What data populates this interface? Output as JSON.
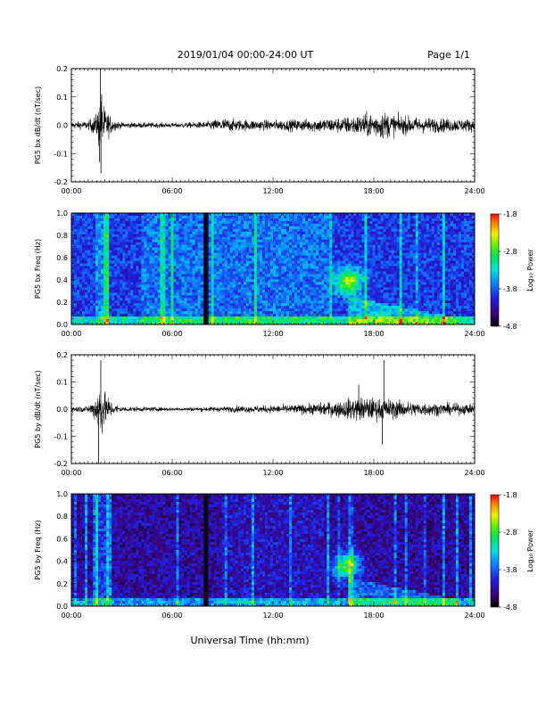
{
  "header": {
    "date_label": "2019/01/04  00:00-24:00 UT",
    "page_label": "Page 1/1"
  },
  "xlabel": "Universal Time (hh:mm)",
  "x_ticks": [
    "00:00",
    "06:00",
    "12:00",
    "18:00",
    "24:00"
  ],
  "colorbar": {
    "label": "Log₁₀ Power",
    "ticks": [
      "-1.8",
      "-2.8",
      "-3.8",
      "-4.8"
    ],
    "range": [
      -4.8,
      -1.8
    ]
  },
  "chart_data": [
    {
      "type": "line",
      "ylabel": "PG5 bx dB/dt (nT/sec)",
      "y_ticks": [
        "0.2",
        "0.1",
        "0.0",
        "-0.1",
        "-0.2"
      ],
      "xlim_hours": [
        0,
        24
      ],
      "ylim": [
        -0.2,
        0.2
      ],
      "envelope_hours": [
        0,
        1,
        1.5,
        1.7,
        2,
        2.5,
        3,
        6,
        8,
        9,
        10,
        12,
        14,
        16,
        17,
        18.5,
        19,
        20,
        22,
        24
      ],
      "envelope_values": [
        0.012,
        0.015,
        0.04,
        0.1,
        0.06,
        0.02,
        0.01,
        0.008,
        0.012,
        0.025,
        0.02,
        0.018,
        0.022,
        0.028,
        0.035,
        0.05,
        0.04,
        0.03,
        0.025,
        0.022
      ],
      "spikes": [
        {
          "t": 1.72,
          "v": 0.2
        },
        {
          "t": 1.76,
          "v": -0.17
        },
        {
          "t": 1.8,
          "v": 0.11
        },
        {
          "t": 1.68,
          "v": -0.13
        }
      ]
    },
    {
      "type": "heatmap",
      "ylabel": "PG5 bx Freq (Hz)",
      "y_ticks": [
        "1.0",
        "0.8",
        "0.6",
        "0.4",
        "0.2",
        "0.0"
      ],
      "xlim_hours": [
        0,
        24
      ],
      "ylim": [
        0,
        1
      ],
      "gap_hours": 8.0,
      "elevated_hours": [
        4.1,
        15.3
      ],
      "hotspot": {
        "t": 16.5,
        "f": 0.38,
        "value": -2.2
      }
    },
    {
      "type": "line",
      "ylabel": "PG5 by dB/dt (nT/sec)",
      "y_ticks": [
        "0.2",
        "0.1",
        "0.0",
        "-0.1",
        "-0.2"
      ],
      "xlim_hours": [
        0,
        24
      ],
      "ylim": [
        -0.2,
        0.2
      ],
      "envelope_hours": [
        0,
        1,
        1.5,
        1.7,
        2,
        2.5,
        3,
        6,
        8,
        10,
        12,
        14,
        16,
        17,
        18,
        19,
        20,
        22,
        24
      ],
      "envelope_values": [
        0.01,
        0.012,
        0.05,
        0.12,
        0.06,
        0.02,
        0.01,
        0.006,
        0.008,
        0.012,
        0.014,
        0.018,
        0.03,
        0.045,
        0.04,
        0.038,
        0.028,
        0.022,
        0.018
      ],
      "spikes": [
        {
          "t": 1.75,
          "v": 0.18
        },
        {
          "t": 1.62,
          "v": -0.2
        },
        {
          "t": 18.6,
          "v": 0.18
        },
        {
          "t": 18.5,
          "v": -0.13
        },
        {
          "t": 17.1,
          "v": 0.09
        }
      ]
    },
    {
      "type": "heatmap",
      "ylabel": "PG5 by Freq (Hz)",
      "y_ticks": [
        "1.0",
        "0.8",
        "0.6",
        "0.4",
        "0.2",
        "0.0"
      ],
      "xlim_hours": [
        0,
        24
      ],
      "ylim": [
        0,
        1
      ],
      "gap_hours": 8.0,
      "elevated_hours": [],
      "hotspot": {
        "t": 16.4,
        "f": 0.36,
        "value": -2.2
      }
    }
  ]
}
